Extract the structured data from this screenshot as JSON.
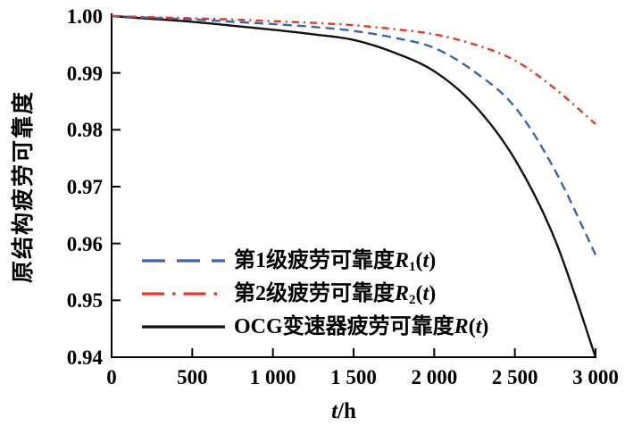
{
  "chart_data": {
    "type": "line",
    "title": "",
    "ylabel": "原结构疲劳可靠度",
    "xlabel": "t/h",
    "xlabel_parts": {
      "var": "t",
      "sep": "/",
      "unit": "h"
    },
    "xlim": [
      0,
      3000
    ],
    "ylim": [
      0.94,
      1.0
    ],
    "grid": false,
    "legend_position": "inside lower-left",
    "x": [
      0,
      250,
      500,
      750,
      1000,
      1250,
      1500,
      1750,
      2000,
      2250,
      2500,
      2750,
      3000
    ],
    "x_ticks": [
      {
        "value": 0,
        "label": "0"
      },
      {
        "value": 500,
        "label": "500"
      },
      {
        "value": 1000,
        "label": "1 000"
      },
      {
        "value": 1500,
        "label": "1 500"
      },
      {
        "value": 2000,
        "label": "2 000"
      },
      {
        "value": 2500,
        "label": "2 500"
      },
      {
        "value": 3000,
        "label": "3 000"
      }
    ],
    "y_ticks": [
      {
        "value": 1.0,
        "label": "1.00"
      },
      {
        "value": 0.99,
        "label": "0.99"
      },
      {
        "value": 0.98,
        "label": "0.98"
      },
      {
        "value": 0.97,
        "label": "0.97"
      },
      {
        "value": 0.96,
        "label": "0.96"
      },
      {
        "value": 0.95,
        "label": "0.95"
      },
      {
        "value": 0.94,
        "label": "0.94"
      }
    ],
    "series": [
      {
        "name": "第1级疲劳可靠度R1(t)",
        "label_zh": "第1级疲劳可靠度",
        "symbol": "R",
        "sub": "1",
        "arg": "t",
        "color": "#3f62ad",
        "style": "dashed",
        "values": [
          1.0,
          0.9997,
          0.9994,
          0.999,
          0.9986,
          0.9981,
          0.9974,
          0.9962,
          0.9944,
          0.9902,
          0.984,
          0.9728,
          0.958
        ]
      },
      {
        "name": "第2级疲劳可靠度R2(t)",
        "label_zh": "第2级疲劳可靠度",
        "symbol": "R",
        "sub": "2",
        "arg": "t",
        "color": "#e0392b",
        "style": "dashdot",
        "values": [
          1.0,
          0.9998,
          0.9996,
          0.9994,
          0.9991,
          0.9988,
          0.9984,
          0.9977,
          0.9968,
          0.995,
          0.9922,
          0.9872,
          0.981
        ]
      },
      {
        "name": "OCG变速器疲劳可靠度R(t)",
        "label_zh": "OCG变速器疲劳可靠度",
        "symbol": "R",
        "sub": "",
        "arg": "t",
        "color": "#111111",
        "style": "solid",
        "values": [
          1.0,
          0.9995,
          0.999,
          0.9983,
          0.9976,
          0.9968,
          0.9958,
          0.9936,
          0.9903,
          0.9843,
          0.9748,
          0.9606,
          0.94
        ]
      }
    ],
    "colors": {
      "axis": "#000000",
      "background": "#fffffe"
    }
  }
}
